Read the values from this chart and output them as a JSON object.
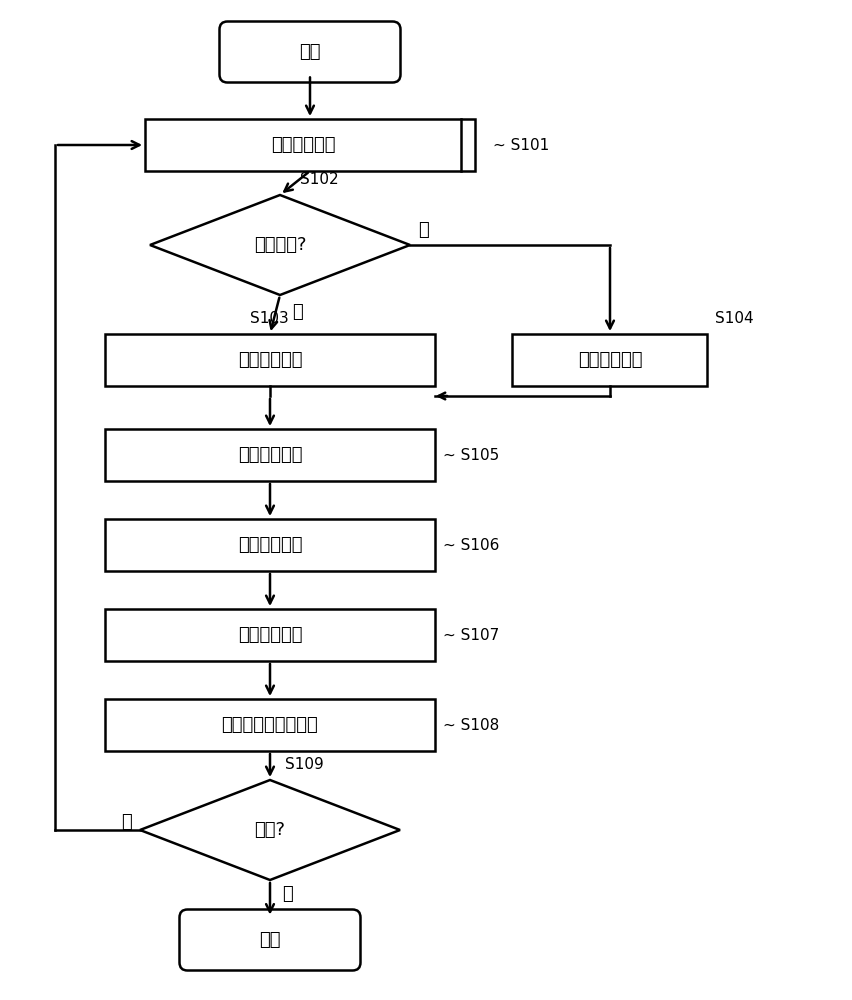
{
  "bg_color": "#ffffff",
  "line_color": "#000000",
  "font_color": "#000000",
  "font_size": 13,
  "tag_font_size": 11,
  "fig_width": 8.53,
  "fig_height": 10.0,
  "dpi": 100,
  "start_label": "开始",
  "end_label": "结束",
  "s101_label": "进行判别处理",
  "s102_label": "激光模式?",
  "s103_label": "激光模式设定",
  "s104_label": "通常模式设定",
  "s105_label": "取得影像信号",
  "s106_label": "进行测光处理",
  "s107_label": "进行亮度控制",
  "s108_label": "进行图像处理并显示",
  "s109_label": "结束?",
  "yes_label": "是",
  "no_label": "否",
  "tag_s101": "S101",
  "tag_s102": "S102",
  "tag_s103": "S103",
  "tag_s104": "S104",
  "tag_s105": "S105",
  "tag_s106": "S106",
  "tag_s107": "S107",
  "tag_s108": "S108",
  "tag_s109": "S109"
}
